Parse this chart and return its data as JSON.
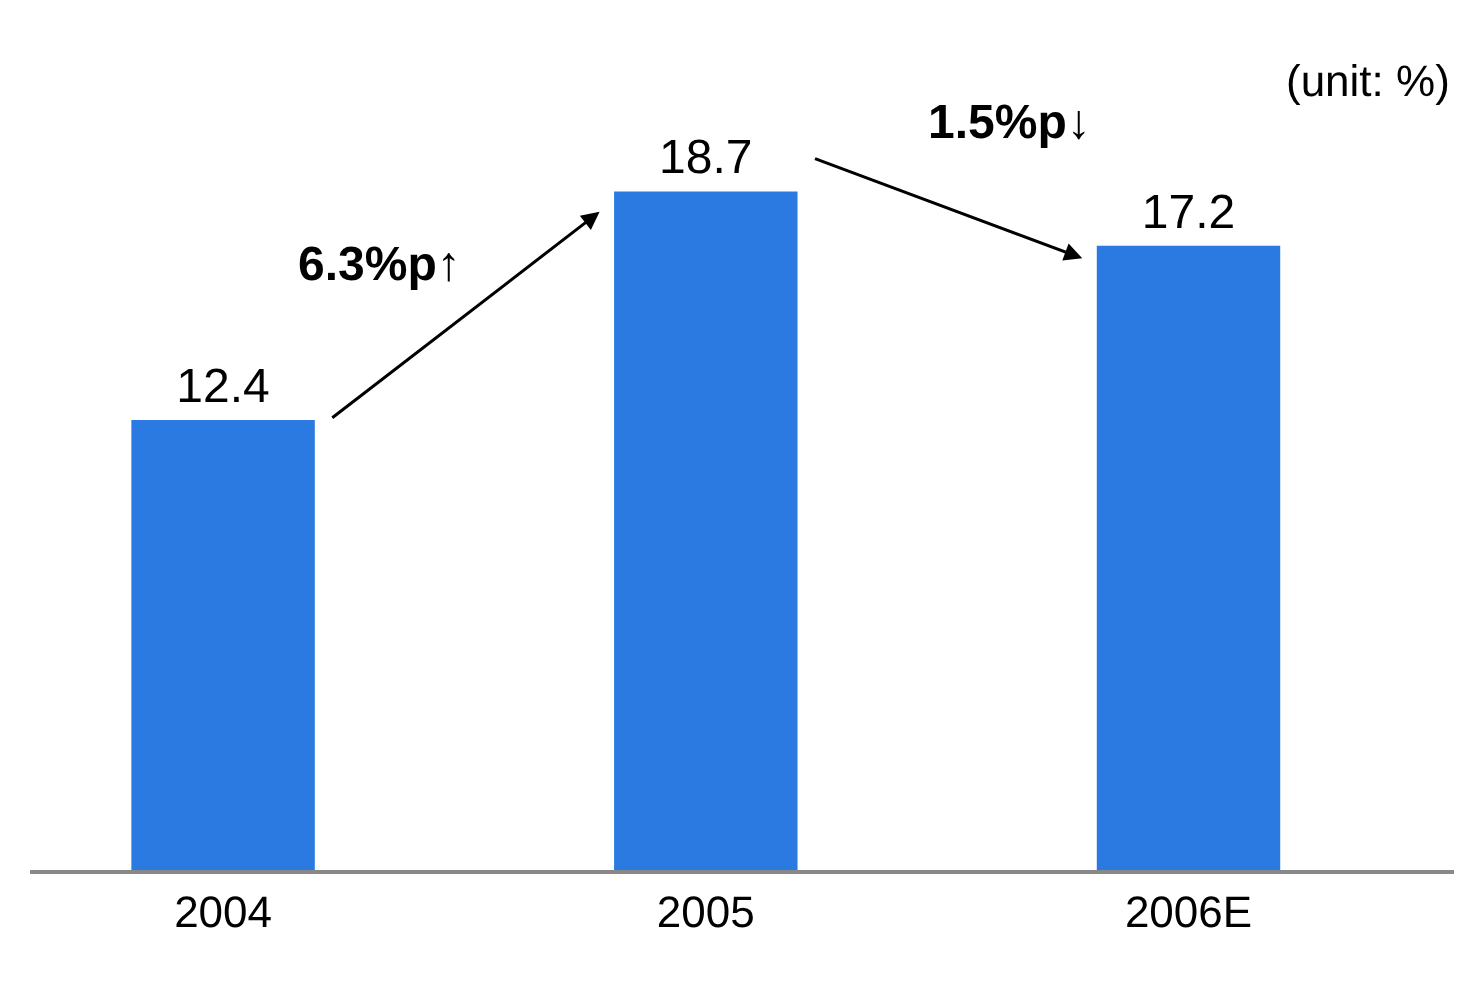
{
  "chart_data": {
    "type": "bar",
    "categories": [
      "2004",
      "2005",
      "2006E"
    ],
    "values": [
      12.4,
      18.7,
      17.2
    ],
    "color": "#2a7ae2",
    "data_labels": true,
    "annotations": [
      "6.3%p↑",
      "1.5%p↓",
      "(unit: %)"
    ]
  }
}
